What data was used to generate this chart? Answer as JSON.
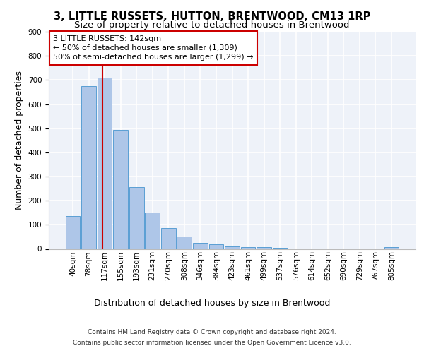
{
  "title1": "3, LITTLE RUSSETS, HUTTON, BRENTWOOD, CM13 1RP",
  "title2": "Size of property relative to detached houses in Brentwood",
  "xlabel": "Distribution of detached houses by size in Brentwood",
  "ylabel": "Number of detached properties",
  "footnote1": "Contains HM Land Registry data © Crown copyright and database right 2024.",
  "footnote2": "Contains public sector information licensed under the Open Government Licence v3.0.",
  "bar_labels": [
    "40sqm",
    "78sqm",
    "117sqm",
    "155sqm",
    "193sqm",
    "231sqm",
    "270sqm",
    "308sqm",
    "346sqm",
    "384sqm",
    "423sqm",
    "461sqm",
    "499sqm",
    "537sqm",
    "576sqm",
    "614sqm",
    "652sqm",
    "690sqm",
    "729sqm",
    "767sqm",
    "805sqm"
  ],
  "bar_values": [
    135,
    675,
    710,
    492,
    255,
    150,
    85,
    52,
    25,
    18,
    10,
    8,
    8,
    3,
    2,
    1,
    1,
    1,
    0,
    0,
    8
  ],
  "bar_color": "#aec6e8",
  "bar_edge_color": "#5a9fd4",
  "property_label": "3 LITTLE RUSSETS: 142sqm",
  "annotation_line1": "← 50% of detached houses are smaller (1,309)",
  "annotation_line2": "50% of semi-detached houses are larger (1,299) →",
  "vline_color": "#cc0000",
  "vline_x": 1.85,
  "annotation_box_color": "#ffffff",
  "annotation_box_edge_color": "#cc0000",
  "ylim": [
    0,
    900
  ],
  "yticks": [
    0,
    100,
    200,
    300,
    400,
    500,
    600,
    700,
    800,
    900
  ],
  "background_color": "#eef2f9",
  "grid_color": "#ffffff",
  "title1_fontsize": 10.5,
  "title2_fontsize": 9.5,
  "axis_label_fontsize": 9,
  "tick_fontsize": 7.5,
  "annotation_fontsize": 8,
  "footnote_fontsize": 6.5
}
